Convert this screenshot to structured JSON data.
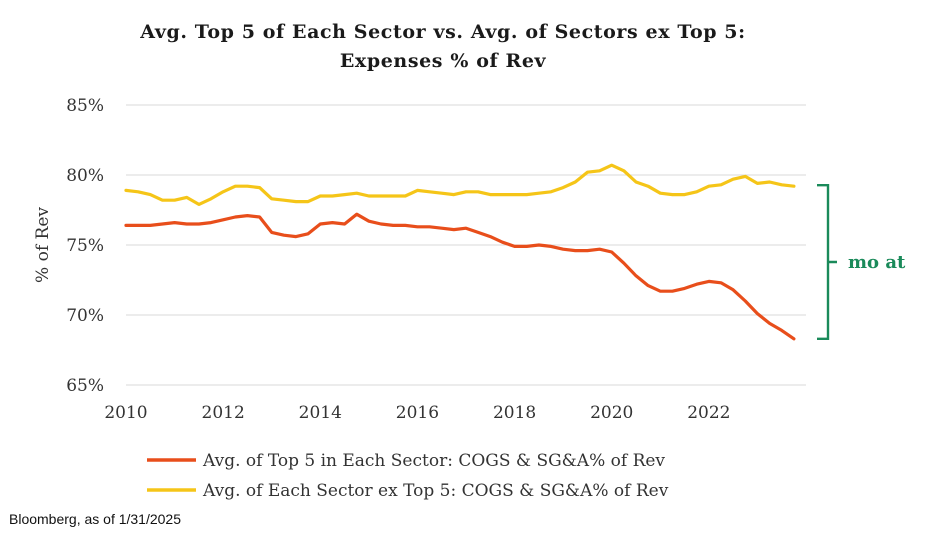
{
  "chart_data": {
    "type": "line",
    "title": "Avg. Top 5 of Each Sector vs. Avg. of Sectors ex Top 5:\nExpenses % of Rev",
    "ylabel": "% of Rev",
    "xlabel": "",
    "xlim": [
      2010,
      2024
    ],
    "ylim": [
      65,
      85
    ],
    "x_ticks": [
      "2010",
      "2012",
      "2014",
      "2016",
      "2018",
      "2020",
      "2022"
    ],
    "y_ticks": [
      "85%",
      "80%",
      "75%",
      "70%",
      "65%"
    ],
    "grid": true,
    "legend_position": "bottom",
    "series": [
      {
        "name": "Avg. of Top 5 in Each Sector: COGS & SG&A% of Rev",
        "color": "#E84E1B",
        "x": [
          2010.0,
          2010.25,
          2010.5,
          2010.75,
          2011.0,
          2011.25,
          2011.5,
          2011.75,
          2012.0,
          2012.25,
          2012.5,
          2012.75,
          2013.0,
          2013.25,
          2013.5,
          2013.75,
          2014.0,
          2014.25,
          2014.5,
          2014.75,
          2015.0,
          2015.25,
          2015.5,
          2015.75,
          2016.0,
          2016.25,
          2016.5,
          2016.75,
          2017.0,
          2017.25,
          2017.5,
          2017.75,
          2018.0,
          2018.25,
          2018.5,
          2018.75,
          2019.0,
          2019.25,
          2019.5,
          2019.75,
          2020.0,
          2020.25,
          2020.5,
          2020.75,
          2021.0,
          2021.25,
          2021.5,
          2021.75,
          2022.0,
          2022.25,
          2022.5,
          2022.75,
          2023.0,
          2023.25,
          2023.5,
          2023.75
        ],
        "values": [
          76.4,
          76.4,
          76.4,
          76.5,
          76.6,
          76.5,
          76.5,
          76.6,
          76.8,
          77.0,
          77.1,
          77.0,
          75.9,
          75.7,
          75.6,
          75.8,
          76.5,
          76.6,
          76.5,
          77.2,
          76.7,
          76.5,
          76.4,
          76.4,
          76.3,
          76.3,
          76.2,
          76.1,
          76.2,
          75.9,
          75.6,
          75.2,
          74.9,
          74.9,
          75.0,
          74.9,
          74.7,
          74.6,
          74.6,
          74.7,
          74.5,
          73.7,
          72.8,
          72.1,
          71.7,
          71.7,
          71.9,
          72.2,
          72.4,
          72.3,
          71.8,
          71.0,
          70.1,
          69.4,
          68.9,
          68.3
        ]
      },
      {
        "name": "Avg. of Each Sector ex Top 5: COGS & SG&A% of Rev",
        "color": "#F5C518",
        "x": [
          2010.0,
          2010.25,
          2010.5,
          2010.75,
          2011.0,
          2011.25,
          2011.5,
          2011.75,
          2012.0,
          2012.25,
          2012.5,
          2012.75,
          2013.0,
          2013.25,
          2013.5,
          2013.75,
          2014.0,
          2014.25,
          2014.5,
          2014.75,
          2015.0,
          2015.25,
          2015.5,
          2015.75,
          2016.0,
          2016.25,
          2016.5,
          2016.75,
          2017.0,
          2017.25,
          2017.5,
          2017.75,
          2018.0,
          2018.25,
          2018.5,
          2018.75,
          2019.0,
          2019.25,
          2019.5,
          2019.75,
          2020.0,
          2020.25,
          2020.5,
          2020.75,
          2021.0,
          2021.25,
          2021.5,
          2021.75,
          2022.0,
          2022.25,
          2022.5,
          2022.75,
          2023.0,
          2023.25,
          2023.5,
          2023.75
        ],
        "values": [
          78.9,
          78.8,
          78.6,
          78.2,
          78.2,
          78.4,
          77.9,
          78.3,
          78.8,
          79.2,
          79.2,
          79.1,
          78.3,
          78.2,
          78.1,
          78.1,
          78.5,
          78.5,
          78.6,
          78.7,
          78.5,
          78.5,
          78.5,
          78.5,
          78.9,
          78.8,
          78.7,
          78.6,
          78.8,
          78.8,
          78.6,
          78.6,
          78.6,
          78.6,
          78.7,
          78.8,
          79.1,
          79.5,
          80.2,
          80.3,
          80.7,
          80.3,
          79.5,
          79.2,
          78.7,
          78.6,
          78.6,
          78.8,
          79.2,
          79.3,
          79.7,
          79.9,
          79.4,
          79.5,
          79.3,
          79.2
        ]
      }
    ],
    "annotation": {
      "text": "mo at",
      "color": "#1A8A5A"
    }
  },
  "source_note": "Bloomberg, as of 1/31/2025"
}
